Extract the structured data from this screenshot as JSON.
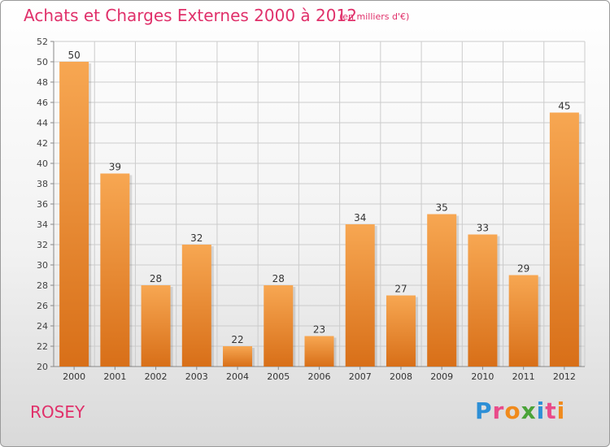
{
  "header": {
    "title": "Achats et Charges Externes 2000 à 2012",
    "subtitle": "(en milliers d'€)"
  },
  "footer": {
    "place": "ROSEY",
    "brand": "Proxiti"
  },
  "colors": {
    "title": "#e0306a",
    "bar_light": "#f7a752",
    "bar_dark": "#d86f18",
    "grid": "#cccccc",
    "logo_letters": [
      "#2d8fd6",
      "#e94b8a",
      "#f08a1c",
      "#4aa338",
      "#2d8fd6",
      "#e94b8a",
      "#f08a1c"
    ]
  },
  "chart_data": {
    "type": "bar",
    "categories": [
      "2000",
      "2001",
      "2002",
      "2003",
      "2004",
      "2005",
      "2006",
      "2007",
      "2008",
      "2009",
      "2010",
      "2011",
      "2012"
    ],
    "values": [
      50,
      39,
      28,
      32,
      22,
      28,
      23,
      34,
      27,
      35,
      33,
      29,
      45
    ],
    "ylim": [
      20,
      52
    ],
    "yticks": [
      20,
      22,
      24,
      26,
      28,
      30,
      32,
      34,
      36,
      38,
      40,
      42,
      44,
      46,
      48,
      50,
      52
    ],
    "grid": true,
    "data_labels": true
  }
}
